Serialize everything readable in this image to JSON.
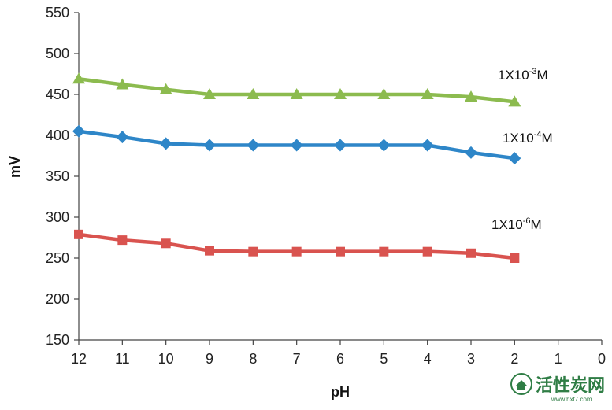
{
  "chart_data": {
    "type": "line",
    "xlabel": "pH",
    "ylabel": "mV",
    "xlim": [
      12,
      0
    ],
    "ylim": [
      150,
      550
    ],
    "x_ticks": [
      12,
      11,
      10,
      9,
      8,
      7,
      6,
      5,
      4,
      3,
      2,
      1,
      0
    ],
    "y_ticks": [
      150,
      200,
      250,
      300,
      350,
      400,
      450,
      500,
      550
    ],
    "x_reversed": true,
    "grid": false,
    "legend": "none",
    "x": [
      12,
      11,
      10,
      9,
      8,
      7,
      6,
      5,
      4,
      3,
      2
    ],
    "series": [
      {
        "name": "1X10-3M",
        "label_base": "1X10",
        "label_exp": "-3",
        "label_unit": "M",
        "color": "#8cbb4f",
        "marker": "triangle",
        "values": [
          469,
          462,
          456,
          450,
          450,
          450,
          450,
          450,
          450,
          447,
          441
        ]
      },
      {
        "name": "1X10-4M",
        "label_base": "1X10",
        "label_exp": "-4",
        "label_unit": "M",
        "color": "#2e86c8",
        "marker": "diamond",
        "values": [
          405,
          398,
          390,
          388,
          388,
          388,
          388,
          388,
          388,
          379,
          372
        ]
      },
      {
        "name": "1X10-6M",
        "label_base": "1X10",
        "label_exp": "-6",
        "label_unit": "M",
        "color": "#d9534f",
        "marker": "square",
        "values": [
          279,
          272,
          268,
          259,
          258,
          258,
          258,
          258,
          258,
          256,
          250
        ]
      }
    ]
  },
  "watermark": {
    "title": "活性炭网",
    "subtitle": "www.hxt7.com",
    "color": "#2f7d45"
  }
}
